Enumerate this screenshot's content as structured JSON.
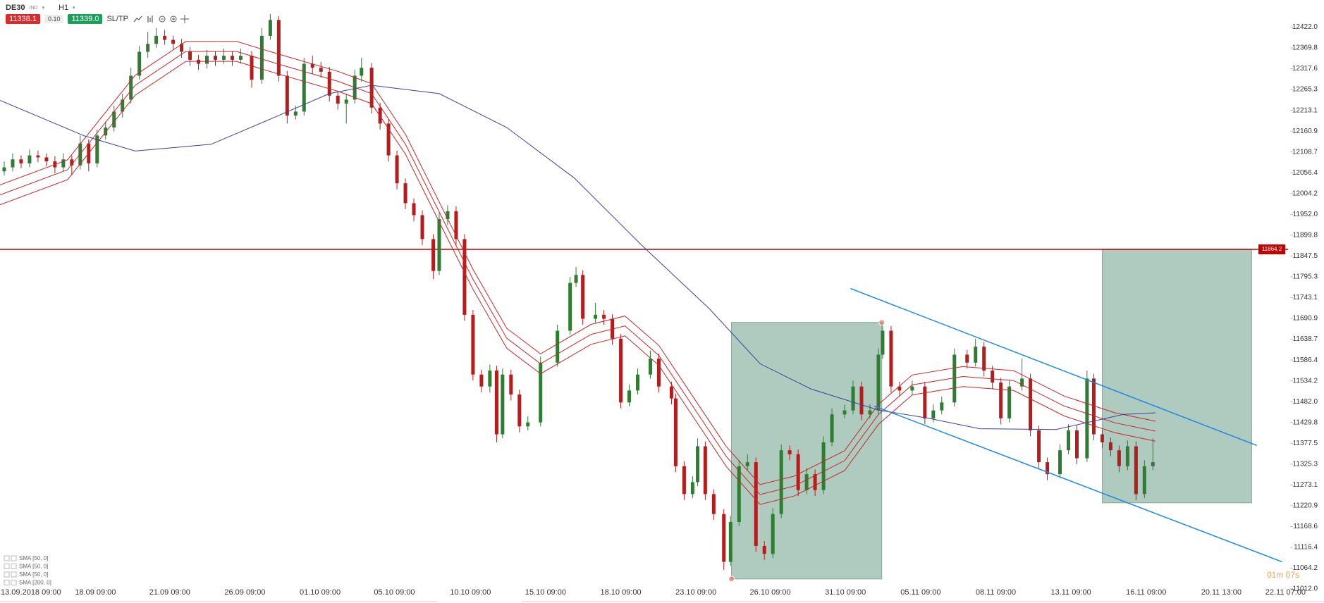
{
  "toolbar": {
    "symbol": "DE30",
    "symbol_type": "IND",
    "timeframe": "H1",
    "sell": "11338.1",
    "volume": "0.10",
    "buy": "11339.0",
    "sltp": "SL/TP"
  },
  "countdown": "01m 07s",
  "chart_data": {
    "type": "candlestick",
    "up_color": "#2e7d32",
    "down_color": "#b71c1c",
    "xlim": [
      0,
      1525
    ],
    "ylim": [
      11005,
      12490
    ],
    "xticks": [
      {
        "value": 24,
        "label": "13.09.2018 09:00"
      },
      {
        "value": 113,
        "label": "18.09 09:00"
      },
      {
        "value": 201,
        "label": "21.09 09:00"
      },
      {
        "value": 290,
        "label": "26.09 09:00"
      },
      {
        "value": 379,
        "label": "01.10 09:00"
      },
      {
        "value": 467,
        "label": "05.10 09:00"
      },
      {
        "value": 557,
        "label": "10.10 09:00"
      },
      {
        "value": 646,
        "label": "15.10 09:00"
      },
      {
        "value": 735,
        "label": "18.10 09:00"
      },
      {
        "value": 824,
        "label": "23.10 09:00"
      },
      {
        "value": 912,
        "label": "26.10 09:00"
      },
      {
        "value": 1001,
        "label": "31.10 09:00"
      },
      {
        "value": 1090,
        "label": "05.11 09:00"
      },
      {
        "value": 1179,
        "label": "08.11 09:00"
      },
      {
        "value": 1268,
        "label": "13.11 09:00"
      },
      {
        "value": 1357,
        "label": "16.11 09:00"
      },
      {
        "value": 1446,
        "label": "20.11 13:00"
      },
      {
        "value": 1522,
        "label": "22.11 07:00"
      }
    ],
    "yticks": [
      {
        "value": 12422,
        "label": "12422.0"
      },
      12369.8,
      12317.6,
      12265.3,
      12213.1,
      12160.9,
      12108.7,
      12056.4,
      12004.2,
      {
        "value": 11952,
        "label": "11952.0"
      },
      11899.8,
      11847.5,
      11795.3,
      11743.1,
      11690.9,
      11638.7,
      11586.4,
      11534.2,
      {
        "value": 11482,
        "label": "11482.0"
      },
      11429.8,
      11377.5,
      11325.3,
      11273.1,
      11220.9,
      11168.6,
      11116.4,
      11064.2,
      {
        "value": 11012,
        "label": "11012.0"
      }
    ],
    "candles": [
      [
        5,
        12060,
        12085,
        12050,
        12070
      ],
      [
        15,
        12070,
        12105,
        12060,
        12090
      ],
      [
        25,
        12090,
        12100,
        12068,
        12080
      ],
      [
        35,
        12080,
        12115,
        12070,
        12100
      ],
      [
        45,
        12100,
        12112,
        12083,
        12095
      ],
      [
        55,
        12095,
        12105,
        12072,
        12085
      ],
      [
        65,
        12085,
        12098,
        12055,
        12070
      ],
      [
        75,
        12070,
        12105,
        12060,
        12090
      ],
      [
        85,
        12090,
        12100,
        12050,
        12075
      ],
      [
        95,
        12075,
        12150,
        12065,
        12130
      ],
      [
        105,
        12130,
        12140,
        12060,
        12080
      ],
      [
        115,
        12080,
        12165,
        12070,
        12150
      ],
      [
        125,
        12150,
        12185,
        12140,
        12170
      ],
      [
        135,
        12170,
        12225,
        12160,
        12210
      ],
      [
        145,
        12210,
        12255,
        12195,
        12240
      ],
      [
        155,
        12240,
        12320,
        12230,
        12300
      ],
      [
        165,
        12300,
        12375,
        12290,
        12360
      ],
      [
        175,
        12360,
        12410,
        12345,
        12380
      ],
      [
        185,
        12380,
        12420,
        12370,
        12400
      ],
      [
        195,
        12400,
        12415,
        12378,
        12390
      ],
      [
        205,
        12390,
        12400,
        12365,
        12380
      ],
      [
        215,
        12380,
        12392,
        12345,
        12360
      ],
      [
        225,
        12360,
        12372,
        12325,
        12340
      ],
      [
        235,
        12340,
        12352,
        12315,
        12330
      ],
      [
        245,
        12330,
        12365,
        12318,
        12350
      ],
      [
        255,
        12350,
        12362,
        12325,
        12340
      ],
      [
        265,
        12340,
        12368,
        12330,
        12350
      ],
      [
        275,
        12350,
        12362,
        12325,
        12340
      ],
      [
        285,
        12340,
        12368,
        12330,
        12350
      ],
      [
        298,
        12350,
        12362,
        12270,
        12290
      ],
      [
        310,
        12290,
        12420,
        12280,
        12400
      ],
      [
        320,
        12400,
        12455,
        12390,
        12440
      ],
      [
        330,
        12440,
        12450,
        12285,
        12300
      ],
      [
        340,
        12300,
        12312,
        12180,
        12200
      ],
      [
        350,
        12200,
        12225,
        12190,
        12210
      ],
      [
        360,
        12210,
        12345,
        12200,
        12330
      ],
      [
        370,
        12330,
        12350,
        12305,
        12320
      ],
      [
        380,
        12320,
        12335,
        12295,
        12310
      ],
      [
        390,
        12310,
        12322,
        12235,
        12250
      ],
      [
        400,
        12250,
        12262,
        12215,
        12230
      ],
      [
        410,
        12230,
        12255,
        12180,
        12240
      ],
      [
        420,
        12240,
        12315,
        12230,
        12300
      ],
      [
        428,
        12300,
        12345,
        12285,
        12320
      ],
      [
        440,
        12320,
        12332,
        12205,
        12220
      ],
      [
        450,
        12220,
        12232,
        12165,
        12180
      ],
      [
        460,
        12180,
        12192,
        12085,
        12100
      ],
      [
        470,
        12100,
        12112,
        12015,
        12030
      ],
      [
        480,
        12030,
        12042,
        11965,
        11980
      ],
      [
        490,
        11980,
        11992,
        11935,
        11950
      ],
      [
        500,
        11950,
        11962,
        11875,
        11890
      ],
      [
        513,
        11890,
        11902,
        11790,
        11810
      ],
      [
        520,
        11810,
        11955,
        11800,
        11940
      ],
      [
        530,
        11940,
        11975,
        11925,
        11960
      ],
      [
        540,
        11960,
        11972,
        11875,
        11890
      ],
      [
        550,
        11890,
        11902,
        11685,
        11700
      ],
      [
        560,
        11700,
        11712,
        11535,
        11550
      ],
      [
        570,
        11550,
        11562,
        11505,
        11520
      ],
      [
        580,
        11520,
        11575,
        11505,
        11560
      ],
      [
        588,
        11560,
        11572,
        11380,
        11400
      ],
      [
        595,
        11400,
        11565,
        11390,
        11550
      ],
      [
        605,
        11550,
        11562,
        11485,
        11500
      ],
      [
        615,
        11500,
        11512,
        11405,
        11420
      ],
      [
        625,
        11420,
        11445,
        11410,
        11430
      ],
      [
        640,
        11430,
        11595,
        11420,
        11580
      ],
      [
        660,
        11580,
        11675,
        11570,
        11660
      ],
      [
        675,
        11660,
        11795,
        11650,
        11780
      ],
      [
        682,
        11780,
        11820,
        11770,
        11800
      ],
      [
        690,
        11800,
        11812,
        11675,
        11690
      ],
      [
        705,
        11690,
        11730,
        11680,
        11700
      ],
      [
        715,
        11700,
        11712,
        11675,
        11690
      ],
      [
        725,
        11690,
        11702,
        11625,
        11640
      ],
      [
        735,
        11640,
        11652,
        11465,
        11480
      ],
      [
        745,
        11480,
        11525,
        11470,
        11510
      ],
      [
        755,
        11510,
        11565,
        11500,
        11550
      ],
      [
        770,
        11550,
        11610,
        11540,
        11590
      ],
      [
        780,
        11590,
        11602,
        11505,
        11520
      ],
      [
        795,
        11520,
        11532,
        11475,
        11490
      ],
      [
        800,
        11490,
        11502,
        11305,
        11320
      ],
      [
        810,
        11320,
        11332,
        11235,
        11250
      ],
      [
        820,
        11250,
        11295,
        11240,
        11280
      ],
      [
        826,
        11280,
        11390,
        11270,
        11370
      ],
      [
        835,
        11370,
        11382,
        11235,
        11250
      ],
      [
        845,
        11250,
        11262,
        11185,
        11200
      ],
      [
        857,
        11200,
        11212,
        11060,
        11080
      ],
      [
        865,
        11080,
        11195,
        11070,
        11180
      ],
      [
        875,
        11180,
        11335,
        11170,
        11320
      ],
      [
        885,
        11320,
        11350,
        11310,
        11330
      ],
      [
        895,
        11330,
        11342,
        11105,
        11120
      ],
      [
        905,
        11120,
        11132,
        11085,
        11100
      ],
      [
        915,
        11100,
        11215,
        11090,
        11200
      ],
      [
        925,
        11200,
        11375,
        11190,
        11360
      ],
      [
        935,
        11360,
        11372,
        11335,
        11350
      ],
      [
        945,
        11350,
        11362,
        11245,
        11260
      ],
      [
        955,
        11260,
        11315,
        11250,
        11300
      ],
      [
        965,
        11300,
        11312,
        11245,
        11260
      ],
      [
        975,
        11260,
        11395,
        11250,
        11380
      ],
      [
        985,
        11380,
        11465,
        11370,
        11450
      ],
      [
        1000,
        11450,
        11475,
        11440,
        11460
      ],
      [
        1010,
        11460,
        11535,
        11450,
        11520
      ],
      [
        1020,
        11520,
        11532,
        11435,
        11450
      ],
      [
        1030,
        11450,
        11475,
        11440,
        11460
      ],
      [
        1040,
        11460,
        11615,
        11450,
        11600
      ],
      [
        1045,
        11600,
        11680,
        11590,
        11660
      ],
      [
        1055,
        11660,
        11672,
        11505,
        11520
      ],
      [
        1065,
        11520,
        11532,
        11495,
        11510
      ],
      [
        1080,
        11510,
        11535,
        11500,
        11520
      ],
      [
        1095,
        11520,
        11532,
        11425,
        11440
      ],
      [
        1105,
        11440,
        11475,
        11430,
        11460
      ],
      [
        1115,
        11460,
        11495,
        11450,
        11480
      ],
      [
        1130,
        11480,
        11615,
        11470,
        11600
      ],
      [
        1145,
        11600,
        11612,
        11565,
        11580
      ],
      [
        1155,
        11580,
        11640,
        11570,
        11620
      ],
      [
        1165,
        11620,
        11632,
        11545,
        11560
      ],
      [
        1175,
        11560,
        11572,
        11515,
        11530
      ],
      [
        1185,
        11530,
        11542,
        11425,
        11440
      ],
      [
        1195,
        11440,
        11535,
        11430,
        11520
      ],
      [
        1210,
        11520,
        11590,
        11510,
        11540
      ],
      [
        1220,
        11540,
        11552,
        11395,
        11410
      ],
      [
        1230,
        11410,
        11422,
        11315,
        11330
      ],
      [
        1240,
        11330,
        11342,
        11285,
        11300
      ],
      [
        1255,
        11300,
        11375,
        11290,
        11360
      ],
      [
        1265,
        11360,
        11425,
        11350,
        11410
      ],
      [
        1275,
        11410,
        11422,
        11325,
        11340
      ],
      [
        1287,
        11340,
        11560,
        11330,
        11540
      ],
      [
        1295,
        11540,
        11552,
        11385,
        11400
      ],
      [
        1305,
        11400,
        11412,
        11365,
        11380
      ],
      [
        1315,
        11380,
        11392,
        11345,
        11360
      ],
      [
        1325,
        11360,
        11372,
        11305,
        11320
      ],
      [
        1335,
        11320,
        11385,
        11310,
        11370
      ],
      [
        1345,
        11370,
        11382,
        11235,
        11250
      ],
      [
        1355,
        11250,
        11335,
        11240,
        11320
      ],
      [
        1365,
        11320,
        11390,
        11310,
        11330
      ]
    ],
    "series": [
      {
        "name": "SMA [50, 0]",
        "color": "#c62828",
        "x": [
          0,
          80,
          160,
          220,
          280,
          330,
          400,
          440,
          480,
          520,
          560,
          600,
          640,
          700,
          740,
          780,
          820,
          860,
          900,
          940,
          1000,
          1040,
          1080,
          1140,
          1200,
          1260,
          1320,
          1368
        ],
        "values": [
          12026,
          12089,
          12301,
          12386,
          12386,
          12354,
          12311,
          12280,
          12153,
          11983,
          11814,
          11666,
          11602,
          11676,
          11697,
          11623,
          11496,
          11369,
          11274,
          11295,
          11359,
          11475,
          11549,
          11570,
          11560,
          11496,
          11454,
          11433
        ]
      },
      {
        "name": "SMA [50, 0]",
        "color": "#c62828",
        "x": [
          0,
          80,
          160,
          220,
          280,
          330,
          400,
          440,
          480,
          520,
          560,
          600,
          640,
          700,
          740,
          780,
          820,
          860,
          900,
          940,
          1000,
          1040,
          1080,
          1140,
          1200,
          1260,
          1320,
          1368
        ],
        "values": [
          12001,
          12064,
          12276,
          12361,
          12361,
          12329,
          12286,
          12255,
          12128,
          11958,
          11789,
          11641,
          11577,
          11651,
          11672,
          11598,
          11471,
          11344,
          11249,
          11270,
          11334,
          11450,
          11524,
          11545,
          11535,
          11471,
          11429,
          11408
        ]
      },
      {
        "name": "SMA [50, 0]",
        "color": "#c62828",
        "x": [
          0,
          80,
          160,
          220,
          280,
          330,
          400,
          440,
          480,
          520,
          560,
          600,
          640,
          700,
          740,
          780,
          820,
          860,
          900,
          940,
          1000,
          1040,
          1080,
          1140,
          1200,
          1260,
          1320,
          1368
        ],
        "values": [
          11976,
          12039,
          12251,
          12336,
          12336,
          12304,
          12261,
          12230,
          12103,
          11933,
          11764,
          11616,
          11552,
          11626,
          11647,
          11573,
          11446,
          11319,
          11224,
          11245,
          11309,
          11425,
          11499,
          11520,
          11510,
          11446,
          11404,
          11383
        ]
      },
      {
        "name": "SMA [200, 0]",
        "color": "#3f3f9a",
        "x": [
          0,
          100,
          160,
          250,
          320,
          390,
          440,
          520,
          600,
          680,
          760,
          840,
          900,
          960,
          1040,
          1100,
          1160,
          1250,
          1330,
          1368
        ],
        "values": [
          12238,
          12149,
          12111,
          12128,
          12191,
          12255,
          12276,
          12255,
          12170,
          12043,
          11874,
          11715,
          11577,
          11514,
          11461,
          11440,
          11414,
          11412,
          11450,
          11454
        ]
      }
    ],
    "hline": {
      "value": 11864.2,
      "color": "#c00000"
    },
    "zones": [
      {
        "x": [
          866,
          1044
        ],
        "y": [
          11037,
          11681
        ]
      },
      {
        "x": [
          1305,
          1482
        ],
        "y": [
          11228,
          11865
        ]
      }
    ],
    "zone_color": "#4e8a72",
    "channel": [
      {
        "x": [
          1007,
          1488
        ],
        "y": [
          11766,
          11372
        ]
      },
      {
        "x": [
          1035,
          1518
        ],
        "y": [
          11471,
          11080
        ]
      }
    ],
    "channel_color": "#1e88e5",
    "markers": [
      {
        "x": 1044,
        "y": 11681
      },
      {
        "x": 866,
        "y": 11037
      }
    ],
    "marker_color": "#e57373"
  }
}
